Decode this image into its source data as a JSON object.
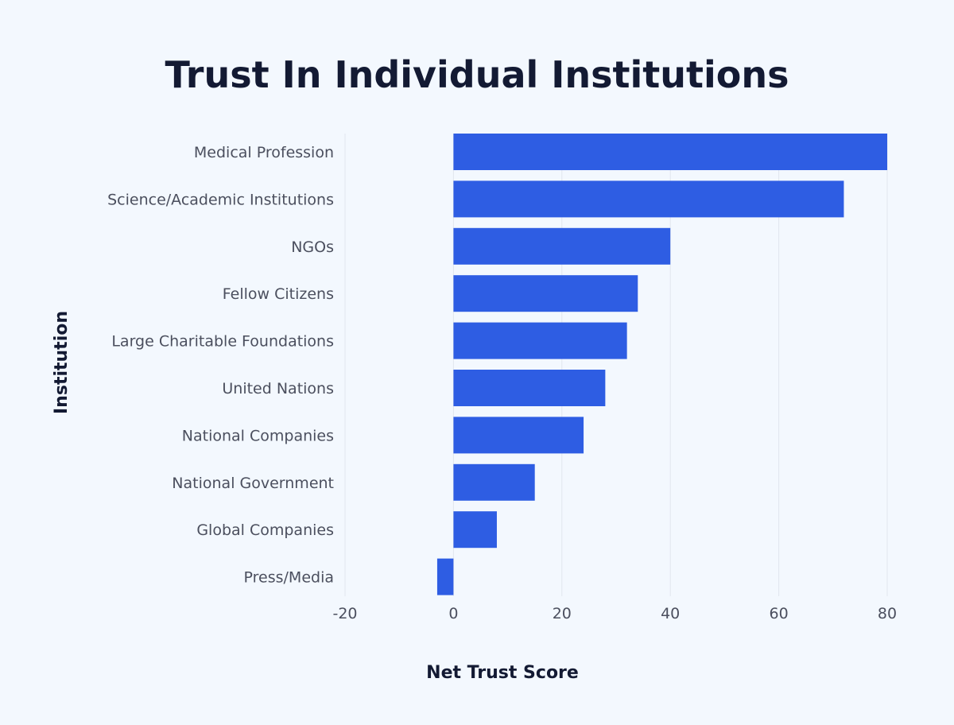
{
  "chart_data": {
    "type": "bar",
    "orientation": "horizontal",
    "title": "Trust In Individual Institutions",
    "xlabel": "Net Trust Score",
    "ylabel": "Institution",
    "categories": [
      "Medical Profession",
      "Science/Academic Institutions",
      "NGOs",
      "Fellow Citizens",
      "Large Charitable Foundations",
      "United Nations",
      "National Companies",
      "National Government",
      "Global Companies",
      "Press/Media"
    ],
    "values": [
      80,
      72,
      40,
      34,
      32,
      28,
      24,
      15,
      8,
      -3
    ],
    "xlim": [
      -20,
      80
    ],
    "xticks": [
      "-20",
      "0",
      "20",
      "40",
      "60",
      "80"
    ],
    "grid": "vertical",
    "bar_color": "#2e5de3"
  }
}
